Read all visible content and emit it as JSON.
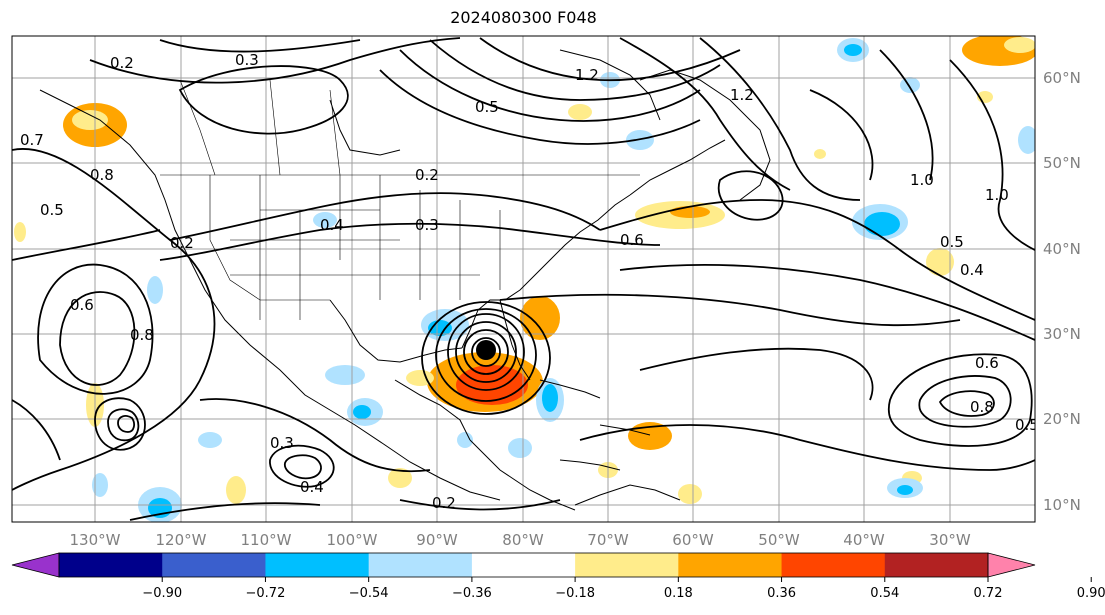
{
  "map": {
    "title": "2024080300 F048",
    "lat_labels": [
      "60°N",
      "50°N",
      "40°N",
      "30°N",
      "20°N",
      "10°N"
    ],
    "lon_labels": [
      "130°W",
      "120°W",
      "110°W",
      "100°W",
      "90°W",
      "80°W",
      "70°W",
      "60°W",
      "50°W",
      "40°W",
      "30°W"
    ],
    "colorbar": {
      "colors": [
        "#9932cc",
        "#00008b",
        "#3a5fcd",
        "#00bfff",
        "#b0e2ff",
        "#ffffff",
        "#ffec8b",
        "#ffa500",
        "#ff4500",
        "#b22222",
        "#ff82ab"
      ],
      "tick_labels": [
        "−0.90",
        "−0.72",
        "−0.54",
        "−0.36",
        "−0.18",
        "0.18",
        "0.36",
        "0.54",
        "0.72",
        "0.90"
      ]
    },
    "contour_labels": [
      "0.2",
      "0.3",
      "0.4",
      "0.5",
      "0.6",
      "0.7",
      "0.8",
      "1.0",
      "1.2"
    ],
    "highlighted_feature": "storm-center"
  }
}
